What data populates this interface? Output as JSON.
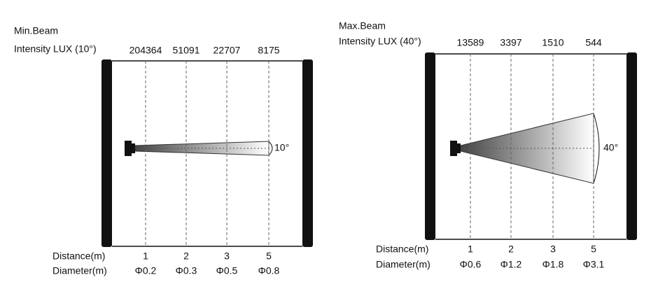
{
  "panels": [
    {
      "title": "Min.Beam",
      "intensity_label": "Intensity LUX (10°)",
      "lux": [
        "204364",
        "51091",
        "22707",
        "8175"
      ],
      "angle_label": "10°",
      "distance_label": "Distance(m)",
      "distances": [
        "1",
        "2",
        "3",
        "5"
      ],
      "diameter_label": "Diameter(m)",
      "diameters": [
        "Φ0.2",
        "Φ0.3",
        "Φ0.5",
        "Φ0.8"
      ]
    },
    {
      "title": "Max.Beam",
      "intensity_label": "Intensity LUX (40°)",
      "lux": [
        "13589",
        "3397",
        "1510",
        "544"
      ],
      "angle_label": "40°",
      "distance_label": "Distance(m)",
      "distances": [
        "1",
        "2",
        "3",
        "5"
      ],
      "diameter_label": "Diameter(m)",
      "diameters": [
        "Φ0.6",
        "Φ1.2",
        "Φ1.8",
        "Φ3.1"
      ]
    }
  ]
}
